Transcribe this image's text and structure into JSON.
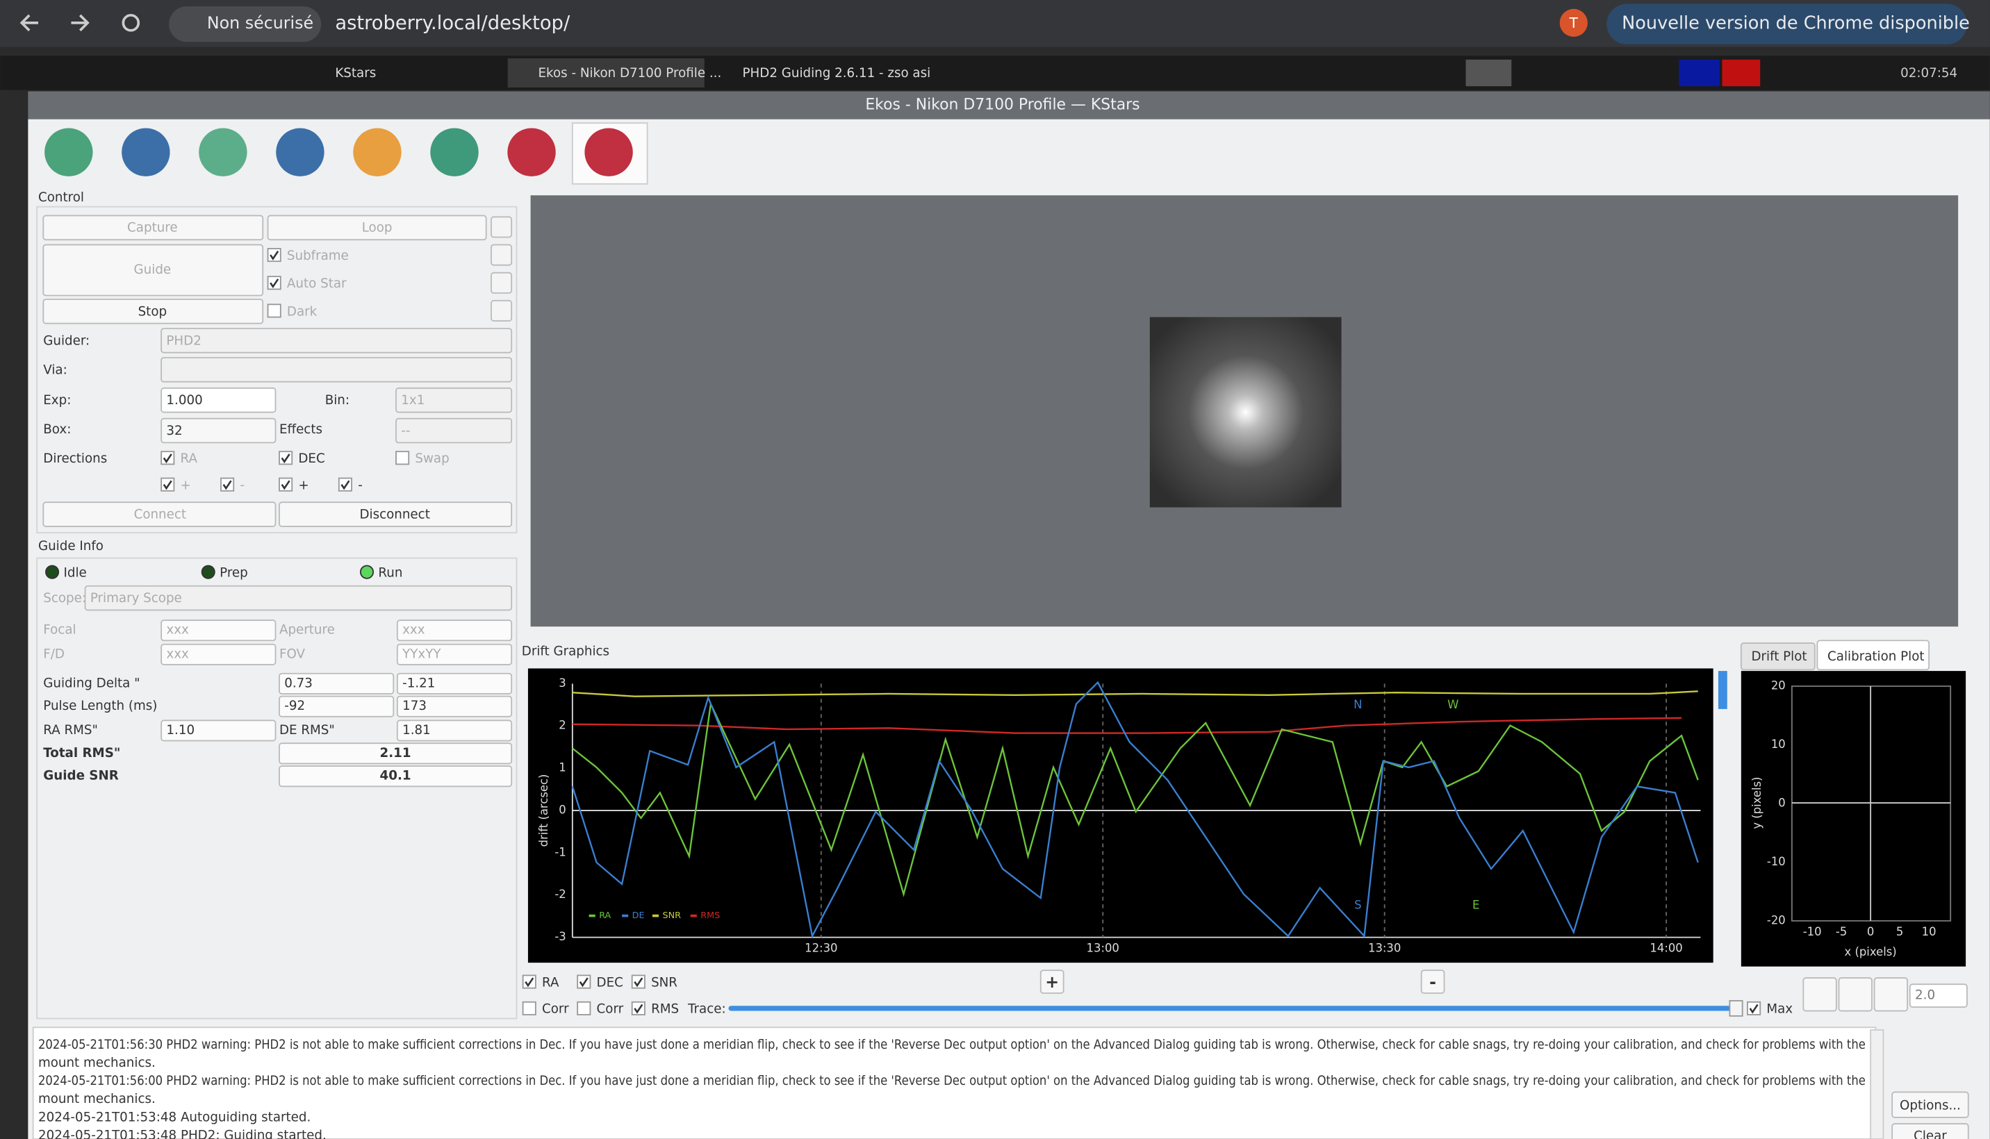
{
  "browser": {
    "security": "Non sécurisé",
    "url": "astroberry.local/desktop/",
    "profile": "T",
    "update": "Nouvelle version de Chrome disponible"
  },
  "taskbar": {
    "apps": [
      "KStars",
      "Ekos - Nikon D7100 Profile ...",
      "PHD2 Guiding 2.6.11 - zso asi"
    ],
    "clock": "02:07:54"
  },
  "window": {
    "title": "Ekos - Nikon D7100 Profile — KStars"
  },
  "control": {
    "heading": "Control",
    "capture": "Capture",
    "loop": "Loop",
    "guide": "Guide",
    "stop": "Stop",
    "connect": "Connect",
    "disconnect": "Disconnect",
    "subframe": "Subframe",
    "auto_star": "Auto Star",
    "dark": "Dark",
    "guider_label": "Guider:",
    "guider": "PHD2",
    "via_label": "Via:",
    "exp_label": "Exp:",
    "exp": "1.000",
    "bin_label": "Bin:",
    "bin": "1x1",
    "box_label": "Box:",
    "box": "32",
    "effects_label": "Effects",
    "effects": "--",
    "directions_label": "Directions",
    "ra": "RA",
    "dec": "DEC",
    "swap": "Swap",
    "signs": [
      "+",
      "-",
      "+",
      "-"
    ]
  },
  "guide_info": {
    "heading": "Guide Info",
    "states": [
      "Idle",
      "Prep",
      "Run"
    ],
    "scope_label": "Scope:",
    "scope": "Primary Scope",
    "focal_label": "Focal",
    "focal": "xxx",
    "aperture_label": "Aperture",
    "aperture": "xxx",
    "fd_label": "F/D",
    "fd": "xxx",
    "fov_label": "FOV",
    "fov": "YYxYY",
    "delta_label": "Guiding Delta \"",
    "delta_ra": "0.73",
    "delta_de": "-1.21",
    "pulse_label": "Pulse Length (ms)",
    "pulse_ra": "-92",
    "pulse_de": "173",
    "ra_rms_label": "RA RMS\"",
    "ra_rms": "1.10",
    "de_rms_label": "DE RMS\"",
    "de_rms": "1.81",
    "total_rms_label": "Total RMS\"",
    "total_rms": "2.11",
    "snr_label": "Guide SNR",
    "snr": "40.1"
  },
  "drift": {
    "heading": "Drift Graphics",
    "ylabel": "drift (arcsec)",
    "yticks": [
      "3",
      "2",
      "1",
      "0",
      "-1",
      "-2",
      "-3"
    ],
    "xticks": [
      "12:30",
      "13:00",
      "13:30",
      "14:00"
    ],
    "legend": [
      "RA",
      "DE",
      "SNR",
      "RMS"
    ],
    "compass": [
      "N",
      "W",
      "S",
      "E"
    ]
  },
  "tabs": [
    "Drift Plot",
    "Calibration Plot"
  ],
  "calibration": {
    "yticks": [
      "20",
      "10",
      "0",
      "-10",
      "-20"
    ],
    "xticks": [
      "-10",
      "-5",
      "0",
      "5",
      "10"
    ],
    "ylabel": "y (pixels)",
    "xlabel": "x (pixels)"
  },
  "options": {
    "ra": "RA",
    "dec": "DEC",
    "snr": "SNR",
    "corr1": "Corr",
    "corr2": "Corr",
    "rms": "RMS",
    "trace": "Trace:",
    "max": "Max",
    "plus": "+",
    "minus": "-",
    "scale": "2.0"
  },
  "log": [
    "2024-05-21T01:56:30 PHD2 warning: PHD2 is not able to make sufficient corrections in Dec.  If you have just done a meridian flip, check to see if the 'Reverse Dec output option' on the Advanced Dialog guiding tab is wrong.  Otherwise, check for cable snags, try re-doing your calibration, and check for problems with the",
    "mount mechanics.",
    "2024-05-21T01:56:00 PHD2 warning: PHD2 is not able to make sufficient corrections in Dec.  If you have just done a meridian flip, check to see if the 'Reverse Dec output option' on the Advanced Dialog guiding tab is wrong.  Otherwise, check for cable snags, try re-doing your calibration, and check for problems with the",
    "mount mechanics.",
    "2024-05-21T01:53:48 Autoguiding started.",
    "2024-05-21T01:53:48 PHD2: Guiding started."
  ],
  "log_buttons": [
    "Options...",
    "Clear"
  ]
}
